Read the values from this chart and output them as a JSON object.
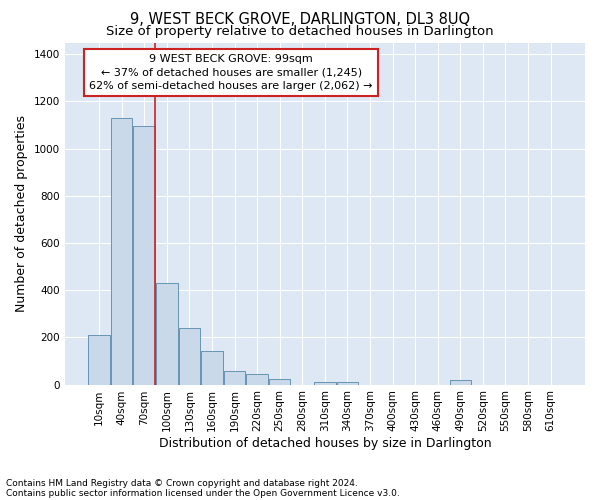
{
  "title": "9, WEST BECK GROVE, DARLINGTON, DL3 8UQ",
  "subtitle": "Size of property relative to detached houses in Darlington",
  "xlabel": "Distribution of detached houses by size in Darlington",
  "ylabel": "Number of detached properties",
  "footnote1": "Contains HM Land Registry data © Crown copyright and database right 2024.",
  "footnote2": "Contains public sector information licensed under the Open Government Licence v3.0.",
  "annotation_title": "9 WEST BECK GROVE: 99sqm",
  "annotation_line2": "← 37% of detached houses are smaller (1,245)",
  "annotation_line3": "62% of semi-detached houses are larger (2,062) →",
  "bar_labels": [
    "10sqm",
    "40sqm",
    "70sqm",
    "100sqm",
    "130sqm",
    "160sqm",
    "190sqm",
    "220sqm",
    "250sqm",
    "280sqm",
    "310sqm",
    "340sqm",
    "370sqm",
    "400sqm",
    "430sqm",
    "460sqm",
    "490sqm",
    "520sqm",
    "550sqm",
    "580sqm",
    "610sqm"
  ],
  "bar_values": [
    210,
    1130,
    1095,
    430,
    240,
    143,
    58,
    45,
    22,
    0,
    12,
    12,
    0,
    0,
    0,
    0,
    20,
    0,
    0,
    0,
    0
  ],
  "bar_color": "#c9d9ea",
  "bar_edge_color": "#5588aa",
  "vline_x": 2.5,
  "vline_color": "#cc2222",
  "ylim": [
    0,
    1450
  ],
  "yticks": [
    0,
    200,
    400,
    600,
    800,
    1000,
    1200,
    1400
  ],
  "bg_color": "#dde8f4",
  "grid_color": "#ffffff",
  "annotation_box_color": "#ffffff",
  "annotation_box_edge": "#cc2222",
  "title_fontsize": 10.5,
  "subtitle_fontsize": 9.5,
  "axis_label_fontsize": 9,
  "tick_fontsize": 7.5,
  "annotation_fontsize": 8,
  "footnote_fontsize": 6.5
}
